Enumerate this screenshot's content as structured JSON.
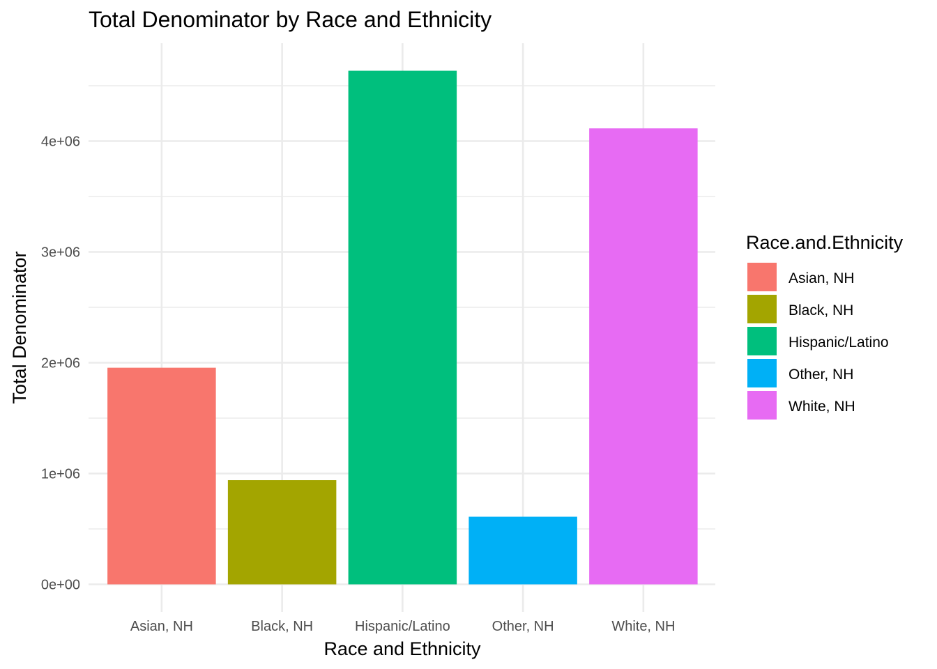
{
  "chart_data": {
    "type": "bar",
    "title": "Total Denominator by Race and Ethnicity",
    "xlabel": "Race and Ethnicity",
    "ylabel": "Total Denominator",
    "categories": [
      "Asian, NH",
      "Black, NH",
      "Hispanic/Latino",
      "Other, NH",
      "White, NH"
    ],
    "values": [
      1955000,
      940000,
      4635000,
      610000,
      4115000
    ],
    "colors": [
      "#F8766D",
      "#A3A500",
      "#00BF7D",
      "#00B0F6",
      "#E76BF3"
    ],
    "y_ticks": [
      0,
      1000000,
      2000000,
      3000000,
      4000000
    ],
    "y_tick_labels": [
      "0e+00",
      "1e+06",
      "2e+06",
      "3e+06",
      "4e+06"
    ],
    "ylim": [
      -150000,
      4850000
    ],
    "grid": true,
    "legend": {
      "title": "Race.and.Ethnicity",
      "position": "right",
      "entries": [
        "Asian, NH",
        "Black, NH",
        "Hispanic/Latino",
        "Other, NH",
        "White, NH"
      ]
    }
  }
}
